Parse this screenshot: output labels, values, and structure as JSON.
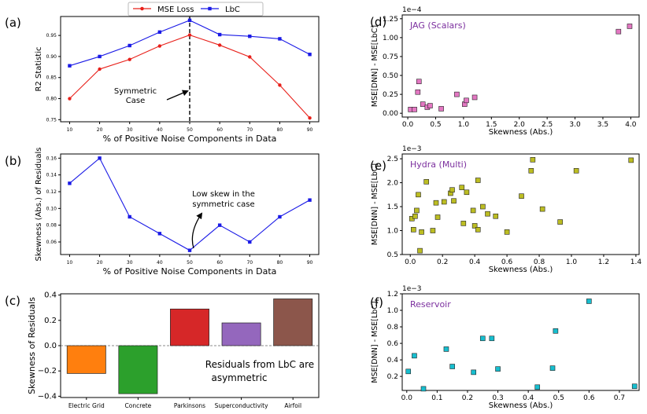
{
  "chart_data": [
    {
      "id": "a",
      "type": "line",
      "panel_label": "(a)",
      "xlabel": "% of Positive Noise Components in Data",
      "ylabel": "R2 Statistic",
      "x": [
        10,
        20,
        30,
        40,
        50,
        60,
        70,
        80,
        90
      ],
      "xlim": [
        7,
        93
      ],
      "ylim": [
        0.745,
        0.995
      ],
      "xticks": [
        "10",
        "20",
        "30",
        "40",
        "50",
        "60",
        "70",
        "80",
        "90"
      ],
      "yticks": [
        "0.75",
        "0.80",
        "0.85",
        "0.90",
        "0.95"
      ],
      "series": [
        {
          "name": "MSE Loss",
          "color": "#e8201a",
          "marker": "circle",
          "values": [
            0.8,
            0.87,
            0.893,
            0.925,
            0.951,
            0.927,
            0.899,
            0.832,
            0.754
          ]
        },
        {
          "name": "LbC",
          "color": "#1a1ae6",
          "marker": "square",
          "values": [
            0.878,
            0.9,
            0.926,
            0.958,
            0.986,
            0.952,
            0.948,
            0.942,
            0.905
          ]
        }
      ],
      "annotation": {
        "text_line1": "Symmetric",
        "text_line2": "Case"
      }
    },
    {
      "id": "b",
      "type": "line",
      "panel_label": "(b)",
      "xlabel": "% of Positive Noise Components in Data",
      "ylabel": "Skewness (Abs.) of Residuals",
      "x": [
        10,
        20,
        30,
        40,
        50,
        60,
        70,
        80,
        90
      ],
      "xlim": [
        7,
        93
      ],
      "ylim": [
        0.045,
        0.165
      ],
      "xticks": [
        "10",
        "20",
        "30",
        "40",
        "50",
        "60",
        "70",
        "80",
        "90"
      ],
      "yticks": [
        "0.06",
        "0.08",
        "0.10",
        "0.12",
        "0.14",
        "0.16"
      ],
      "series": [
        {
          "name": "LbC",
          "color": "#1a1ae6",
          "marker": "square",
          "values": [
            0.13,
            0.16,
            0.09,
            0.07,
            0.05,
            0.08,
            0.06,
            0.09,
            0.11
          ]
        }
      ],
      "annotation": {
        "text_line1": "Low skew in the",
        "text_line2": "symmetric case"
      }
    },
    {
      "id": "c",
      "type": "bar",
      "panel_label": "(c)",
      "ylabel": "Skewness of Residuals",
      "categories": [
        "Electric Grid",
        "Concrete",
        "Parkinsons",
        "Superconductivity",
        "Airfoil"
      ],
      "values": [
        -0.22,
        -0.38,
        0.29,
        0.18,
        0.37
      ],
      "colors": [
        "#ff7f0e",
        "#2ca02c",
        "#d62728",
        "#9467bd",
        "#8c564b"
      ],
      "ylim": [
        -0.41,
        0.41
      ],
      "yticks": [
        "-0.4",
        "-0.2",
        "0.0",
        "0.2",
        "0.4"
      ],
      "annotation": {
        "text_line1": "Residuals from LbC are",
        "text_line2": "asymmetric"
      }
    },
    {
      "id": "d",
      "type": "scatter",
      "panel_label": "(d)",
      "title": "JAG (Scalars)",
      "title_color": "#7b2f9e",
      "color": "#e377c2",
      "exponent": "1e−4",
      "xlabel": "Skewness (Abs.)",
      "ylabel": "MSE[DNN] - MSE[LbC]",
      "xlim": [
        -0.1,
        4.15
      ],
      "ylim": [
        -0.05,
        1.3
      ],
      "xticks": [
        "0.0",
        "0.5",
        "1.0",
        "1.5",
        "2.0",
        "2.5",
        "3.0",
        "3.5",
        "4.0"
      ],
      "yticks": [
        "0.00",
        "0.25",
        "0.50",
        "0.75",
        "1.00",
        "1.25"
      ],
      "points": [
        [
          0.05,
          0.05
        ],
        [
          0.12,
          0.05
        ],
        [
          0.18,
          0.28
        ],
        [
          0.2,
          0.42
        ],
        [
          0.27,
          0.12
        ],
        [
          0.35,
          0.08
        ],
        [
          0.4,
          0.1
        ],
        [
          0.6,
          0.06
        ],
        [
          0.88,
          0.25
        ],
        [
          1.02,
          0.12
        ],
        [
          1.05,
          0.17
        ],
        [
          1.2,
          0.21
        ],
        [
          3.78,
          1.08
        ],
        [
          3.98,
          1.15
        ]
      ]
    },
    {
      "id": "e",
      "type": "scatter",
      "panel_label": "(e)",
      "title": "Hydra (Multi)",
      "title_color": "#7b2f9e",
      "color": "#bcbd22",
      "exponent": "1e−3",
      "xlabel": "Skewness (Abs.)",
      "ylabel": "MSE[DNN] - MSE[LbC]",
      "xlim": [
        -0.05,
        1.42
      ],
      "ylim": [
        0.5,
        2.6
      ],
      "xticks": [
        "0.0",
        "0.2",
        "0.4",
        "0.6",
        "0.8",
        "1.0",
        "1.2",
        "1.4"
      ],
      "yticks": [
        "0.5",
        "1.0",
        "1.5",
        "2.0",
        "2.5"
      ],
      "points": [
        [
          0.01,
          1.25
        ],
        [
          0.02,
          1.02
        ],
        [
          0.03,
          1.3
        ],
        [
          0.04,
          1.42
        ],
        [
          0.05,
          1.75
        ],
        [
          0.06,
          0.58
        ],
        [
          0.07,
          0.97
        ],
        [
          0.1,
          2.02
        ],
        [
          0.14,
          1.0
        ],
        [
          0.16,
          1.58
        ],
        [
          0.17,
          1.28
        ],
        [
          0.21,
          1.6
        ],
        [
          0.25,
          1.78
        ],
        [
          0.26,
          1.85
        ],
        [
          0.27,
          1.62
        ],
        [
          0.32,
          1.9
        ],
        [
          0.33,
          1.15
        ],
        [
          0.35,
          1.8
        ],
        [
          0.39,
          1.42
        ],
        [
          0.4,
          1.1
        ],
        [
          0.42,
          1.02
        ],
        [
          0.42,
          2.05
        ],
        [
          0.45,
          1.5
        ],
        [
          0.48,
          1.35
        ],
        [
          0.53,
          1.3
        ],
        [
          0.6,
          0.97
        ],
        [
          0.69,
          1.72
        ],
        [
          0.75,
          2.25
        ],
        [
          0.76,
          2.48
        ],
        [
          0.82,
          1.45
        ],
        [
          0.93,
          1.18
        ],
        [
          1.03,
          2.25
        ],
        [
          1.37,
          2.47
        ]
      ]
    },
    {
      "id": "f",
      "type": "scatter",
      "panel_label": "(f)",
      "title": "Reservoir",
      "title_color": "#7b2f9e",
      "color": "#17becf",
      "exponent": "1e−3",
      "xlabel": "Skewness (Abs.)",
      "ylabel": "MSE[DNN] - MSE[LbC]",
      "xlim": [
        -0.015,
        0.765
      ],
      "ylim": [
        0.03,
        1.2
      ],
      "xticks": [
        "0.0",
        "0.1",
        "0.2",
        "0.3",
        "0.4",
        "0.5",
        "0.6",
        "0.7"
      ],
      "yticks": [
        "0.2",
        "0.4",
        "0.6",
        "0.8",
        "1.0",
        "1.2"
      ],
      "points": [
        [
          0.005,
          0.26
        ],
        [
          0.025,
          0.45
        ],
        [
          0.055,
          0.05
        ],
        [
          0.13,
          0.53
        ],
        [
          0.15,
          0.32
        ],
        [
          0.22,
          0.25
        ],
        [
          0.25,
          0.66
        ],
        [
          0.28,
          0.66
        ],
        [
          0.3,
          0.29
        ],
        [
          0.43,
          0.07
        ],
        [
          0.48,
          0.3
        ],
        [
          0.49,
          0.75
        ],
        [
          0.6,
          1.11
        ],
        [
          0.75,
          0.08
        ]
      ]
    }
  ]
}
